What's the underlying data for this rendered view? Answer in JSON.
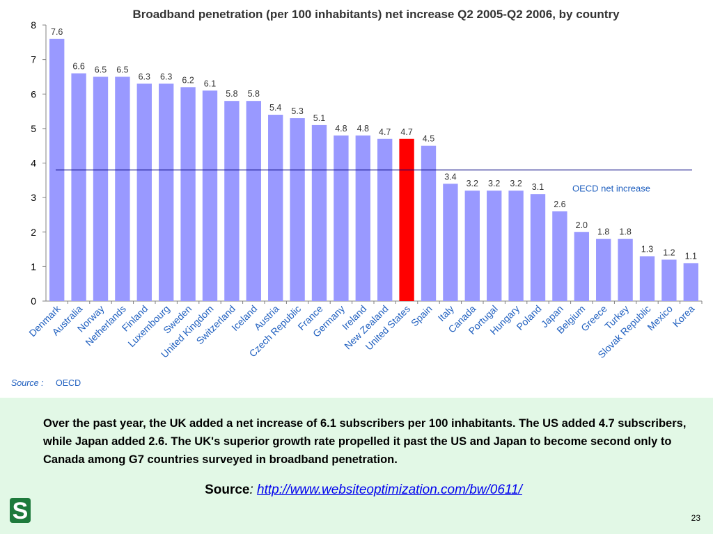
{
  "chart_data": {
    "type": "bar",
    "title": "Broadband penetration (per 100 inhabitants) net increase Q2 2005-Q2 2006, by country",
    "categories": [
      "Denmark",
      "Australia",
      "Norway",
      "Netherlands",
      "Finland",
      "Luxembourg",
      "Sweden",
      "United Kingdom",
      "Switzerland",
      "Iceland",
      "Austria",
      "Czech Republic",
      "France",
      "Germany",
      "Ireland",
      "New Zealand",
      "United States",
      "Spain",
      "Italy",
      "Canada",
      "Portugal",
      "Hungary",
      "Poland",
      "Japan",
      "Belgium",
      "Greece",
      "Turkey",
      "Slovak Republic",
      "Mexico",
      "Korea"
    ],
    "values": [
      7.6,
      6.6,
      6.5,
      6.5,
      6.3,
      6.3,
      6.2,
      6.1,
      5.8,
      5.8,
      5.4,
      5.3,
      5.1,
      4.8,
      4.8,
      4.7,
      4.7,
      4.5,
      3.4,
      3.2,
      3.2,
      3.2,
      3.1,
      2.6,
      2.0,
      1.8,
      1.8,
      1.3,
      1.2,
      1.1
    ],
    "value_labels": [
      "7.6",
      "6.6",
      "6.5",
      "6.5",
      "6.3",
      "6.3",
      "6.2",
      "6.1",
      "5.8",
      "5.8",
      "5.4",
      "5.3",
      "5.1",
      "4.8",
      "4.8",
      "4.7",
      "4.7",
      "4.5",
      "3.4",
      "3.2",
      "3.2",
      "3.2",
      "3.1",
      "2.6",
      "2.0",
      "1.8",
      "1.8",
      "1.3",
      "1.2",
      "1.1"
    ],
    "highlight_category": "United States",
    "bar_color": "#9999ff",
    "highlight_color": "#ff0000",
    "ylim": [
      0,
      8
    ],
    "yticks": [
      0,
      1,
      2,
      3,
      4,
      5,
      6,
      7,
      8
    ],
    "grid": false,
    "reference_line": {
      "label": "OECD net increase",
      "value": 3.8,
      "color": "#000080",
      "label_color": "#1f5fbf"
    },
    "source_note": {
      "label": "Source :",
      "value": "OECD"
    }
  },
  "caption": "Over the past year, the UK added a net increase of 6.1 subscribers per 100 inhabitants. The US added 4.7 subscribers, while Japan added 2.6. The UK's superior growth rate propelled it past the US and Japan to become second only to Canada among G7 countries surveyed in broadband penetration.",
  "source": {
    "label": "Source",
    "colon": ":",
    "link_text": "http://www.websiteoptimization.com/bw/0611/"
  },
  "logo": {
    "letter": "S",
    "color": "#1e7a3c"
  },
  "page_number": "23"
}
